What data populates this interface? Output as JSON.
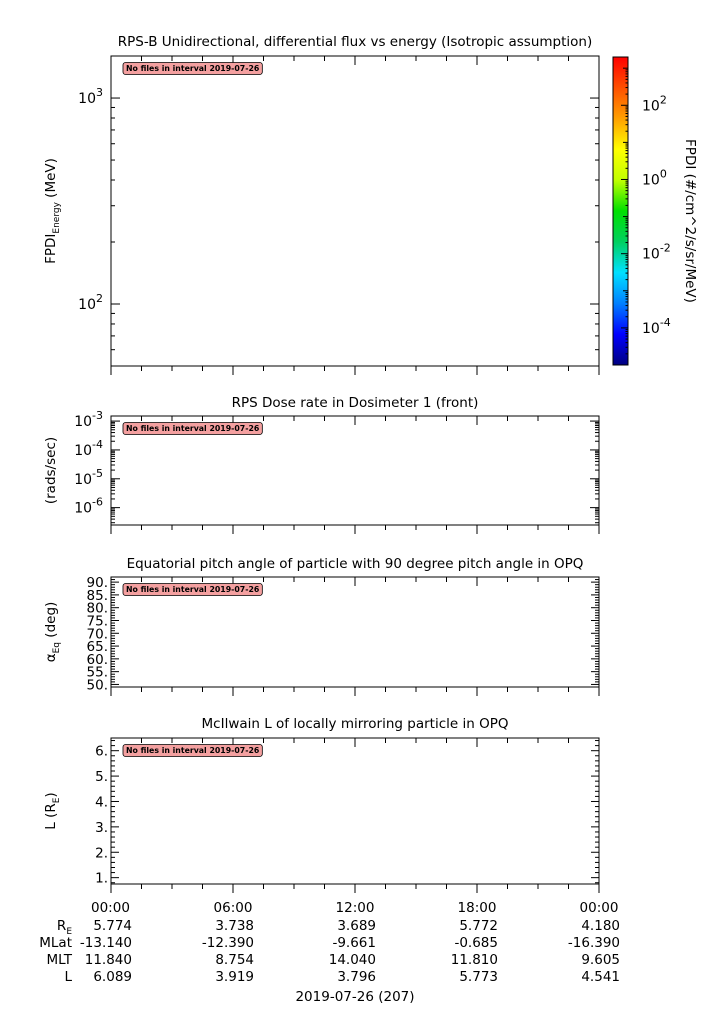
{
  "chart_data": [
    {
      "type": "heatmap",
      "title": "RPS-B  Unidirectional, differential flux vs energy (Isotropic assumption)",
      "ylabel": "FPDI",
      "ylabel_sub": "Energy",
      "ylabel_unit": " (MeV)",
      "yscale": "log",
      "ylim": [
        50,
        1600
      ],
      "yticks": [
        {
          "value": 1000,
          "base": "10",
          "exp": "3"
        },
        {
          "value": 100,
          "base": "10",
          "exp": "2"
        }
      ],
      "message": "No files in interval 2019-07-26",
      "colorbar": {
        "label": "FPDI (#/cm^2/s/sr/MeV)",
        "scale": "log",
        "range": [
          1e-05,
          2000
        ],
        "ticks": [
          {
            "value": 100,
            "base": "10",
            "exp": "2"
          },
          {
            "value": 1,
            "base": "10",
            "exp": "0"
          },
          {
            "value": 0.01,
            "base": "10",
            "exp": "-2"
          },
          {
            "value": 0.0001,
            "base": "10",
            "exp": "-4"
          }
        ],
        "colors": [
          "#000080",
          "#0000ff",
          "#0080ff",
          "#00e0ff",
          "#00d060",
          "#00e000",
          "#c0ff00",
          "#ffff00",
          "#ffa000",
          "#ff5000",
          "#ff0000"
        ]
      }
    },
    {
      "type": "line",
      "title": "RPS  Dose rate in Dosimeter 1 (front)",
      "ylabel": "(rads/sec)",
      "yscale": "log",
      "ylim": [
        2.5e-07,
        0.0015
      ],
      "yticks": [
        {
          "value": 0.001,
          "base": "10",
          "exp": "-3"
        },
        {
          "value": 0.0001,
          "base": "10",
          "exp": "-4"
        },
        {
          "value": 1e-05,
          "base": "10",
          "exp": "-5"
        },
        {
          "value": 1e-06,
          "base": "10",
          "exp": "-6"
        }
      ],
      "message": "No files in interval 2019-07-26"
    },
    {
      "type": "line",
      "title": "Equatorial pitch angle of particle with 90 degree pitch angle in OPQ",
      "ylabel": "α",
      "ylabel_sub": "Eq",
      "ylabel_unit": " (deg)",
      "ylim": [
        49,
        92
      ],
      "yticks": [
        {
          "value": 90,
          "label": "90."
        },
        {
          "value": 85,
          "label": "85."
        },
        {
          "value": 80,
          "label": "80."
        },
        {
          "value": 75,
          "label": "75."
        },
        {
          "value": 70,
          "label": "70."
        },
        {
          "value": 65,
          "label": "65."
        },
        {
          "value": 60,
          "label": "60."
        },
        {
          "value": 55,
          "label": "55."
        },
        {
          "value": 50,
          "label": "50."
        }
      ],
      "message": "No files in interval 2019-07-26"
    },
    {
      "type": "line",
      "title": "McIlwain L of locally mirroring particle in OPQ",
      "ylabel": "L (R",
      "ylabel_sub": "E",
      "ylabel_unit": ")",
      "ylim": [
        0.75,
        6.5
      ],
      "yticks": [
        {
          "value": 6,
          "label": "6."
        },
        {
          "value": 5,
          "label": "5."
        },
        {
          "value": 4,
          "label": "4."
        },
        {
          "value": 3,
          "label": "3."
        },
        {
          "value": 2,
          "label": "2."
        },
        {
          "value": 1,
          "label": "1."
        }
      ],
      "message": "No files in interval 2019-07-26"
    }
  ],
  "time_axis": {
    "hours": [
      0,
      6,
      12,
      18,
      24
    ],
    "tick_labels": [
      "00:00",
      "06:00",
      "12:00",
      "18:00",
      "00:00"
    ],
    "date_label": "2019-07-26 (207)"
  },
  "ephemeris": [
    {
      "label": "R",
      "label_sub": "E",
      "values": [
        "5.774",
        "3.738",
        "3.689",
        "5.772",
        "4.180"
      ]
    },
    {
      "label": "MLat",
      "values": [
        "-13.140",
        "-12.390",
        "-9.661",
        "-0.685",
        "-16.390"
      ]
    },
    {
      "label": "MLT",
      "values": [
        "11.840",
        "8.754",
        "14.040",
        "11.810",
        "9.605"
      ]
    },
    {
      "label": "L",
      "values": [
        "6.089",
        "3.919",
        "3.796",
        "5.773",
        "4.541"
      ]
    }
  ]
}
